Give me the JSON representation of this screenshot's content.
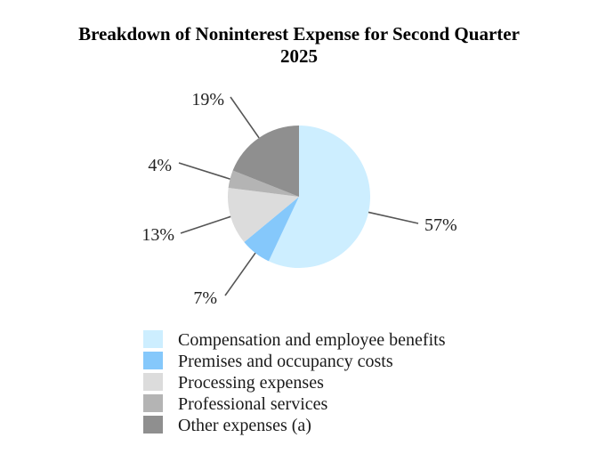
{
  "chart_data": {
    "type": "pie",
    "title_lines": [
      "Breakdown of Noninterest Expense for Second Quarter",
      "2025"
    ],
    "slices": [
      {
        "label": "Compensation and employee benefits",
        "value": 57,
        "display": "57%",
        "color": "#cdeeff"
      },
      {
        "label": "Premises and occupancy costs",
        "value": 7,
        "display": "7%",
        "color": "#85c8fb"
      },
      {
        "label": "Processing expenses",
        "value": 13,
        "display": "13%",
        "color": "#dcdcdc"
      },
      {
        "label": "Professional services",
        "value": 4,
        "display": "4%",
        "color": "#b4b4b4"
      },
      {
        "label": "Other expenses (a)",
        "value": 19,
        "display": "19%",
        "color": "#8f8f8f"
      }
    ],
    "legend_position": "bottom"
  }
}
